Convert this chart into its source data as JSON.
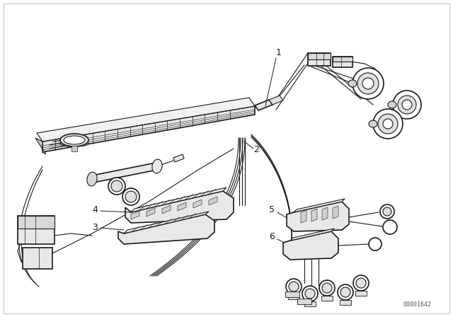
{
  "bg_color": "#ffffff",
  "line_color": "#1a1a1a",
  "watermark": "00001642",
  "figsize": [
    6.4,
    4.48
  ],
  "dpi": 100,
  "border_color": "#cccccc",
  "gray_fill": "#e8e8e8",
  "dark_gray": "#bbbbbb"
}
